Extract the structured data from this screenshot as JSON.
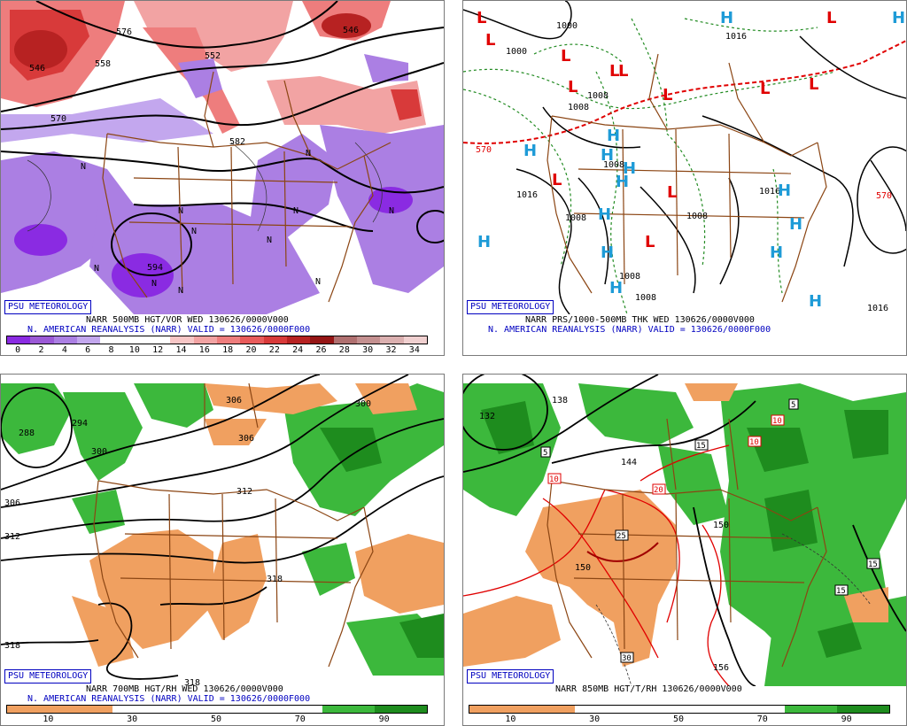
{
  "panels": [
    {
      "id": "vort500",
      "badge": "PSU METEOROLOGY",
      "caption_line1": "NARR 500MB HGT/VOR WED 130626/0000V000",
      "caption_line2": "N. AMERICAN REANALYSIS (NARR) VALID = 130626/0000F000",
      "colorbar": {
        "colors": [
          "#8a2be2",
          "#9b59d6",
          "#ab7fe3",
          "#c3a7ee",
          "#ffffff",
          "#ffffff",
          "#ffffff",
          "#f7c6c6",
          "#f2a3a3",
          "#ee7d7d",
          "#e85b5b",
          "#d83a3a",
          "#b72222",
          "#951515",
          "#b07070",
          "#c49090",
          "#dbb0b0",
          "#f0d0d0"
        ],
        "tick_labels": [
          "0",
          "2",
          "4",
          "6",
          "8",
          "10",
          "12",
          "14",
          "16",
          "18",
          "20",
          "22",
          "24",
          "26",
          "28",
          "30",
          "32",
          "34"
        ]
      },
      "contour_labels": [
        "546",
        "558",
        "552",
        "582",
        "570",
        "594",
        "576",
        "546"
      ],
      "vorticity_labels": [
        "N",
        "N",
        "N",
        "N",
        "N",
        "N",
        "N",
        "N",
        "N",
        "N",
        "N"
      ]
    },
    {
      "id": "mslp_thk",
      "badge": "PSU METEOROLOGY",
      "caption_line1": "NARR PRS/1000-500MB THK WED 130626/0000V000",
      "caption_line2": "N. AMERICAN REANALYSIS (NARR) VALID = 130626/0000F000",
      "pressure_labels": [
        "1000",
        "1000",
        "1016",
        "1008",
        "1008",
        "1008",
        "1016",
        "1016",
        "1008",
        "1008",
        "1008",
        "1008",
        "1016"
      ],
      "thickness_labels": [
        "570",
        "570"
      ],
      "centers_low": [
        "L",
        "L",
        "L",
        "L",
        "L",
        "L",
        "L",
        "L",
        "L",
        "L",
        "L",
        "L",
        "L"
      ],
      "centers_high": [
        "H",
        "H",
        "H",
        "H",
        "H",
        "H",
        "H",
        "H",
        "H",
        "H",
        "H",
        "H",
        "H",
        "H",
        "H"
      ]
    },
    {
      "id": "rh700",
      "badge": "PSU METEOROLOGY",
      "caption_line1": "NARR 700MB HGT/RH WED 130626/0000V000",
      "caption_line2": "N. AMERICAN REANALYSIS (NARR) VALID = 130626/0000F000",
      "colorbar": {
        "colors": [
          "#f0a060",
          "#f0a060",
          "#ffffff",
          "#ffffff",
          "#ffffff",
          "#ffffff",
          "#3cb83c",
          "#1e8c1e"
        ],
        "tick_labels": [
          "10",
          "30",
          "50",
          "70",
          "90"
        ]
      },
      "height_labels": [
        "288",
        "294",
        "300",
        "306",
        "306",
        "300",
        "312",
        "306",
        "312",
        "318",
        "318",
        "318"
      ]
    },
    {
      "id": "t850",
      "badge": "PSU METEOROLOGY",
      "caption_line1": "NARR 850MB HGT/T/RH 130626/0000V000",
      "colorbar": {
        "colors": [
          "#f0a060",
          "#f0a060",
          "#ffffff",
          "#ffffff",
          "#ffffff",
          "#ffffff",
          "#3cb83c",
          "#1e8c1e"
        ],
        "tick_labels": [
          "10",
          "30",
          "50",
          "70",
          "90"
        ]
      },
      "height_labels": [
        "132",
        "138",
        "144",
        "150",
        "150",
        "156"
      ],
      "temp_labels": [
        "10",
        "10",
        "20",
        "25",
        "30",
        "15",
        "10",
        "5",
        "5",
        "15",
        "15"
      ]
    }
  ]
}
